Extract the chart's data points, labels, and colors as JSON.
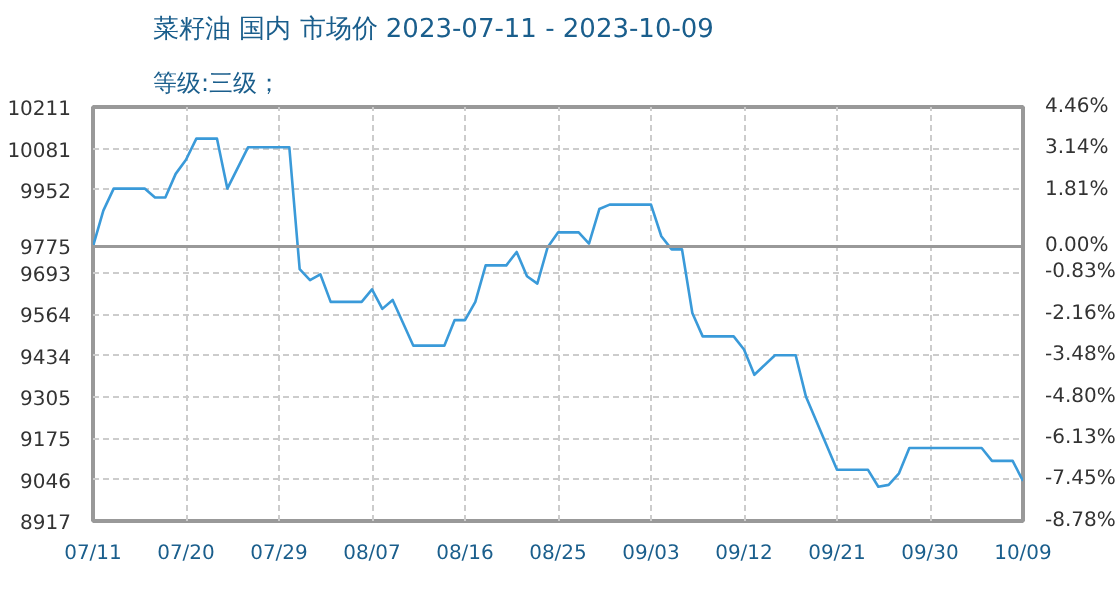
{
  "chart_data": {
    "type": "line",
    "title": "菜籽油 国内 市场价 2023-07-11 - 2023-10-09",
    "subtitle": "等级:三级；",
    "x": [
      "2023-07-11",
      "2023-07-12",
      "2023-07-13",
      "2023-07-16",
      "2023-07-17",
      "2023-07-18",
      "2023-07-19",
      "2023-07-20",
      "2023-07-21",
      "2023-07-23",
      "2023-07-24",
      "2023-07-26",
      "2023-07-30",
      "2023-07-31",
      "2023-08-01",
      "2023-08-02",
      "2023-08-03",
      "2023-08-06",
      "2023-08-07",
      "2023-08-08",
      "2023-08-09",
      "2023-08-11",
      "2023-08-14",
      "2023-08-15",
      "2023-08-16",
      "2023-08-17",
      "2023-08-18",
      "2023-08-20",
      "2023-08-21",
      "2023-08-22",
      "2023-08-23",
      "2023-08-24",
      "2023-08-25",
      "2023-08-27",
      "2023-08-28",
      "2023-08-29",
      "2023-08-30",
      "2023-09-03",
      "2023-09-04",
      "2023-09-05",
      "2023-09-06",
      "2023-09-07",
      "2023-09-08",
      "2023-09-11",
      "2023-09-12",
      "2023-09-13",
      "2023-09-15",
      "2023-09-17",
      "2023-09-18",
      "2023-09-21",
      "2023-09-24",
      "2023-09-25",
      "2023-09-26",
      "2023-09-27",
      "2023-09-28",
      "2023-10-05",
      "2023-10-06",
      "2023-10-08",
      "2023-10-09"
    ],
    "series": [
      {
        "color": "#3a9ad9",
        "values": [
          9775,
          9887,
          9956,
          9956,
          9928,
          9928,
          10002,
          10046,
          10112,
          10112,
          9956,
          10085,
          10085,
          9704,
          9670,
          9688,
          9602,
          9602,
          9641,
          9580,
          9608,
          9465,
          9465,
          9545,
          9545,
          9602,
          9716,
          9716,
          9758,
          9682,
          9659,
          9773,
          9819,
          9819,
          9784,
          9892,
          9906,
          9906,
          9807,
          9766,
          9766,
          9567,
          9494,
          9494,
          9453,
          9374,
          9435,
          9435,
          9305,
          9077,
          9077,
          9024,
          9030,
          9066,
          9145,
          9145,
          9105,
          9105,
          9042
        ]
      }
    ],
    "xlim": [
      "2023-07-11",
      "2023-10-09"
    ],
    "xticks": [
      {
        "value": "2023-07-11",
        "label": "07/11"
      },
      {
        "value": "2023-07-20",
        "label": "07/20"
      },
      {
        "value": "2023-07-29",
        "label": "07/29"
      },
      {
        "value": "2023-08-07",
        "label": "08/07"
      },
      {
        "value": "2023-08-16",
        "label": "08/16"
      },
      {
        "value": "2023-08-25",
        "label": "08/25"
      },
      {
        "value": "2023-09-03",
        "label": "09/03"
      },
      {
        "value": "2023-09-12",
        "label": "09/12"
      },
      {
        "value": "2023-09-21",
        "label": "09/21"
      },
      {
        "value": "2023-09-30",
        "label": "09/30"
      },
      {
        "value": "2023-10-09",
        "label": "10/09"
      }
    ],
    "ylim": [
      8917,
      10211
    ],
    "yticks": [
      8917,
      9046,
      9175,
      9305,
      9434,
      9564,
      9693,
      9775,
      9952,
      10081,
      10211
    ],
    "y2lim": [
      -8.78,
      4.46
    ],
    "y2ticks": [
      {
        "value": -8.78,
        "label": "-8.78%"
      },
      {
        "value": -7.45,
        "label": "-7.45%"
      },
      {
        "value": -6.13,
        "label": "-6.13%"
      },
      {
        "value": -4.8,
        "label": "-4.80%"
      },
      {
        "value": -3.48,
        "label": "-3.48%"
      },
      {
        "value": -2.16,
        "label": "-2.16%"
      },
      {
        "value": -0.83,
        "label": "-0.83%"
      },
      {
        "value": 0,
        "label": "0.00%"
      },
      {
        "value": 1.81,
        "label": "1.81%"
      },
      {
        "value": 3.14,
        "label": "3.14%"
      },
      {
        "value": 4.46,
        "label": "4.46%"
      }
    ],
    "ref_lines": [
      {
        "axis": "y",
        "value": 9775,
        "color": "#999999"
      }
    ],
    "grid": true,
    "marker": "none",
    "line_style": "solid"
  }
}
